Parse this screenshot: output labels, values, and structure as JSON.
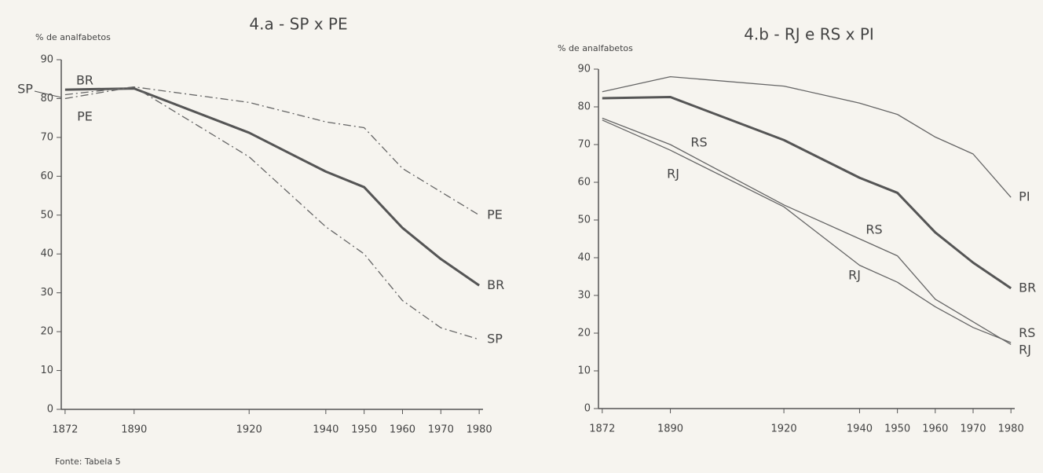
{
  "chart_data": [
    {
      "type": "line",
      "title": "4.a - SP x PE",
      "y_label": "% de analfabetos",
      "x": [
        1872,
        1890,
        1920,
        1940,
        1950,
        1960,
        1970,
        1980
      ],
      "xlim": [
        1871,
        1981
      ],
      "xticks": [
        1872,
        1890,
        1920,
        1940,
        1950,
        1960,
        1970,
        1980
      ],
      "ylim": [
        0,
        90
      ],
      "yticks": [
        0,
        10,
        20,
        30,
        40,
        50,
        60,
        70,
        80,
        90
      ],
      "grid": false,
      "series": [
        {
          "name": "BR",
          "color": "#555555",
          "line_style": "solid",
          "bold": true,
          "values": [
            82.3,
            82.6,
            71.2,
            61.2,
            57.2,
            46.7,
            38.7,
            31.9
          ]
        },
        {
          "name": "SP",
          "color": "#666666",
          "line_style": "dashdot",
          "bold": false,
          "values": [
            81,
            83,
            65,
            47,
            40,
            28,
            21,
            18
          ]
        },
        {
          "name": "PE",
          "color": "#666666",
          "line_style": "dashdot",
          "bold": false,
          "values": [
            80,
            83,
            79,
            74,
            72.5,
            62,
            56,
            50
          ]
        }
      ]
    },
    {
      "type": "line",
      "title": "4.b - RJ e RS x PI",
      "y_label": "% de analfabetos",
      "x": [
        1872,
        1890,
        1920,
        1940,
        1950,
        1960,
        1970,
        1980
      ],
      "xlim": [
        1871,
        1981
      ],
      "xticks": [
        1872,
        1890,
        1920,
        1940,
        1950,
        1960,
        1970,
        1980
      ],
      "ylim": [
        0,
        90
      ],
      "yticks": [
        0,
        10,
        20,
        30,
        40,
        50,
        60,
        70,
        80,
        90
      ],
      "grid": false,
      "series": [
        {
          "name": "BR",
          "color": "#555555",
          "line_style": "solid",
          "bold": true,
          "values": [
            82.3,
            82.6,
            71.2,
            61.2,
            57.2,
            46.7,
            38.7,
            31.9
          ]
        },
        {
          "name": "PI",
          "color": "#666666",
          "line_style": "solid",
          "bold": false,
          "values": [
            84,
            88,
            85.5,
            81,
            78,
            72,
            67.5,
            56
          ]
        },
        {
          "name": "RS",
          "color": "#666666",
          "line_style": "solid",
          "bold": false,
          "values": [
            77,
            70,
            54,
            45,
            40.5,
            29,
            23,
            17
          ]
        },
        {
          "name": "RJ",
          "color": "#666666",
          "line_style": "solid",
          "bold": false,
          "values": [
            76.5,
            68.5,
            53.5,
            38,
            33.5,
            27,
            21.5,
            17.5
          ]
        }
      ]
    }
  ],
  "source": "Fonte: Tabela 5"
}
